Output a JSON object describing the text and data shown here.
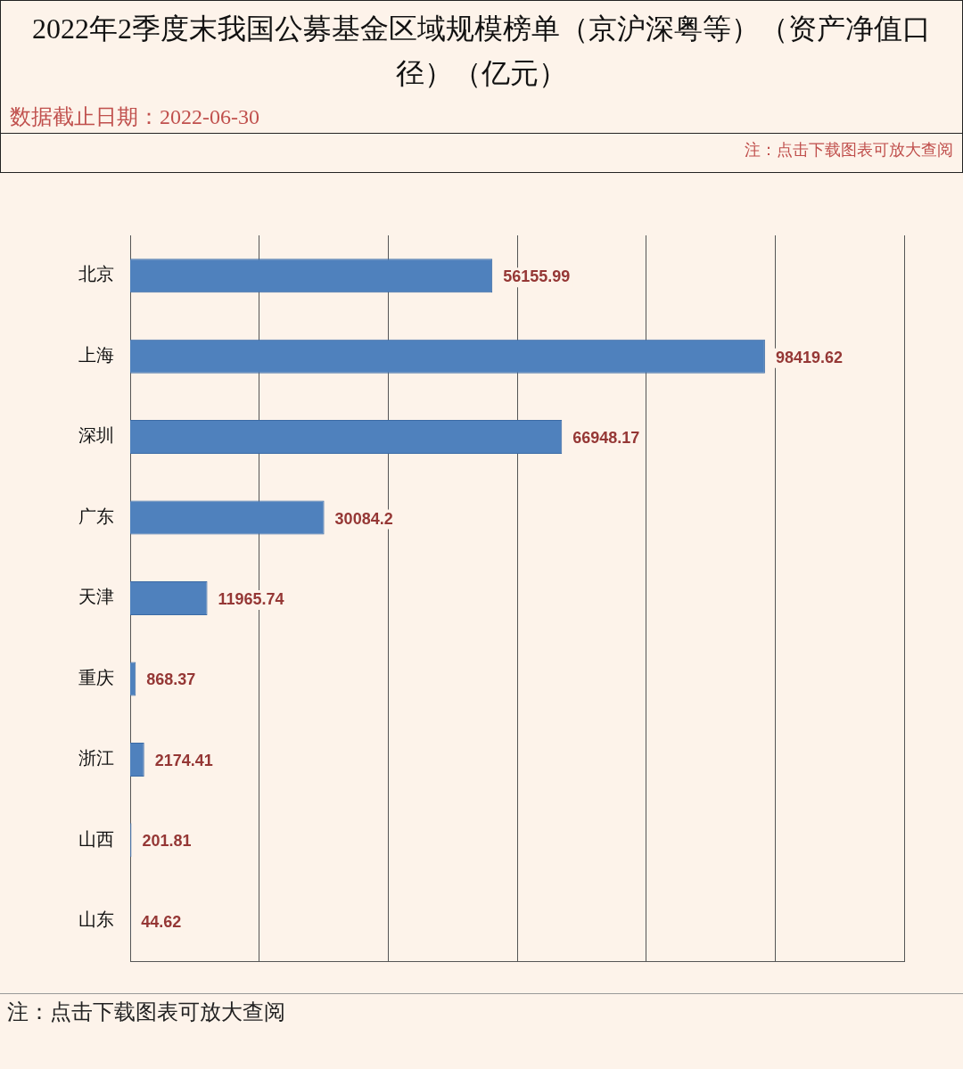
{
  "chart_data": {
    "type": "bar",
    "orientation": "horizontal",
    "title": "2022年2季度末我国公募基金区域规模榜单（京沪深粤等）（资产净值口径）（亿元）",
    "annotations": [
      "数据截止日期：2022-06-30",
      "注：点击下载图表可放大查阅",
      "注：点击下载图表可放大查阅"
    ],
    "categories": [
      "北京",
      "上海",
      "深圳",
      "广东",
      "天津",
      "重庆",
      "浙江",
      "山西",
      "山东"
    ],
    "values": [
      56155.99,
      98419.62,
      66948.17,
      30084.2,
      11965.74,
      868.37,
      2174.41,
      201.81,
      44.62
    ],
    "color": "#4f81bd",
    "data_labels": true,
    "xlim": [
      0,
      120000
    ],
    "xticks": [
      {
        "value": 20000,
        "label": null
      },
      {
        "value": 40000,
        "label": null
      },
      {
        "value": 60000,
        "label": null
      },
      {
        "value": 80000,
        "label": null
      },
      {
        "value": 100000,
        "label": null
      },
      {
        "value": 120000,
        "label": null
      }
    ],
    "grid": "x",
    "tick_labels": "y"
  }
}
